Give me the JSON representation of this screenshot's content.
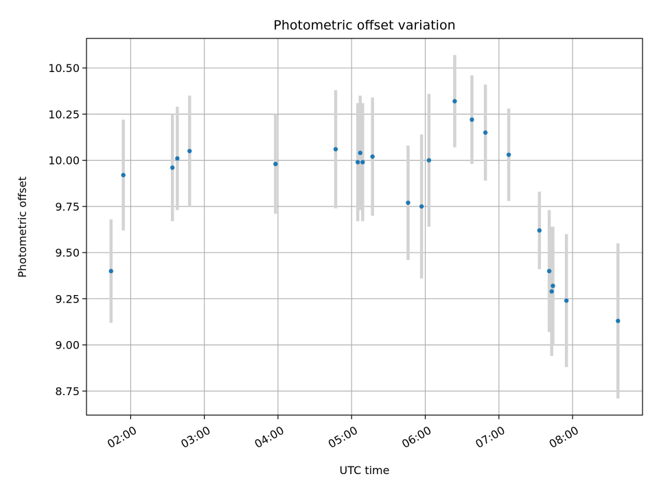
{
  "chart_data": {
    "type": "scatter",
    "title": "Photometric offset variation",
    "xlabel": "UTC time",
    "ylabel": "Photometric offset",
    "x_ticks": [
      "02:00",
      "03:00",
      "04:00",
      "05:00",
      "06:00",
      "07:00",
      "08:00"
    ],
    "y_ticks": [
      "8.75",
      "9.00",
      "9.25",
      "9.50",
      "9.75",
      "10.00",
      "10.25",
      "10.50"
    ],
    "xlim": [
      "01:24",
      "08:57"
    ],
    "ylim": [
      8.62,
      10.66
    ],
    "grid": true,
    "point_color": "#1f77b4",
    "errorbar_color": "#d3d3d3",
    "points": [
      {
        "x": "01:44",
        "y": 9.4,
        "err": 0.28
      },
      {
        "x": "01:54",
        "y": 9.92,
        "err": 0.3
      },
      {
        "x": "02:34",
        "y": 9.96,
        "err": 0.29
      },
      {
        "x": "02:38",
        "y": 10.01,
        "err": 0.28
      },
      {
        "x": "02:48",
        "y": 10.05,
        "err": 0.3
      },
      {
        "x": "03:58",
        "y": 9.98,
        "err": 0.27
      },
      {
        "x": "04:47",
        "y": 10.06,
        "err": 0.32
      },
      {
        "x": "05:05",
        "y": 9.99,
        "err": 0.32
      },
      {
        "x": "05:07",
        "y": 10.04,
        "err": 0.31
      },
      {
        "x": "05:09",
        "y": 9.99,
        "err": 0.32
      },
      {
        "x": "05:17",
        "y": 10.02,
        "err": 0.32
      },
      {
        "x": "05:46",
        "y": 9.77,
        "err": 0.31
      },
      {
        "x": "05:57",
        "y": 9.75,
        "err": 0.39
      },
      {
        "x": "06:03",
        "y": 10.0,
        "err": 0.36
      },
      {
        "x": "06:24",
        "y": 10.32,
        "err": 0.25
      },
      {
        "x": "06:38",
        "y": 10.22,
        "err": 0.24
      },
      {
        "x": "06:49",
        "y": 10.15,
        "err": 0.26
      },
      {
        "x": "07:08",
        "y": 10.03,
        "err": 0.25
      },
      {
        "x": "07:33",
        "y": 9.62,
        "err": 0.21
      },
      {
        "x": "07:41",
        "y": 9.4,
        "err": 0.33
      },
      {
        "x": "07:43",
        "y": 9.29,
        "err": 0.35
      },
      {
        "x": "07:44",
        "y": 9.32,
        "err": 0.32
      },
      {
        "x": "07:55",
        "y": 9.24,
        "err": 0.36
      },
      {
        "x": "08:37",
        "y": 9.13,
        "err": 0.42
      }
    ]
  }
}
